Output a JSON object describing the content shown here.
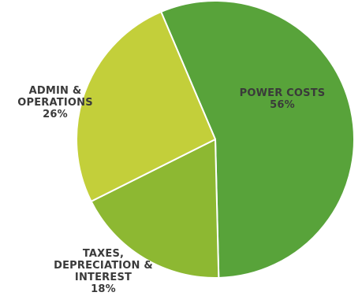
{
  "chart_data": {
    "type": "pie",
    "title": "",
    "slices": [
      {
        "label_lines": [
          "POWER COSTS"
        ],
        "value_label": "56%",
        "value": 56,
        "color": "#58a33a"
      },
      {
        "label_lines": [
          "TAXES,",
          "DEPRECIATION &",
          "INTEREST"
        ],
        "value_label": "18%",
        "value": 18,
        "color": "#8db832"
      },
      {
        "label_lines": [
          "ADMIN &",
          "OPERATIONS"
        ],
        "value_label": "26%",
        "value": 26,
        "color": "#c3cf3a"
      }
    ]
  }
}
